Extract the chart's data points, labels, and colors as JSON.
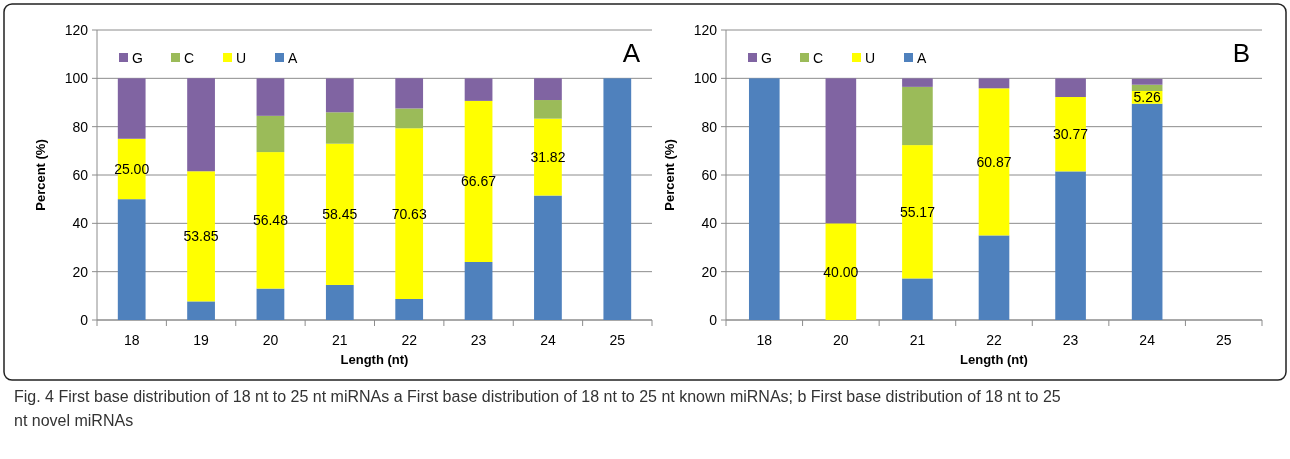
{
  "chart_data": [
    {
      "type": "bar",
      "stacked": true,
      "xlabel": "Length (nt)",
      "ylabel": "Percent (%)",
      "categories": [
        "18",
        "19",
        "20",
        "21",
        "22",
        "23",
        "24",
        "25"
      ],
      "ylim": [
        0,
        120
      ],
      "yticks": [
        0,
        20,
        40,
        60,
        80,
        100,
        120
      ],
      "grid": "y",
      "legend": "top left",
      "series": [
        {
          "name": "A",
          "color": "#4f81bd",
          "values": [
            50,
            7.7,
            13,
            14.5,
            8.7,
            24,
            51.5,
            100
          ]
        },
        {
          "name": "U",
          "color": "#ffff00",
          "values": [
            25,
            53.85,
            56.48,
            58.45,
            70.63,
            66.67,
            31.82,
            null
          ],
          "value_labels": [
            "25.00",
            "53.85",
            "56.48",
            "58.45",
            "70.63",
            "66.67",
            "31.82",
            null
          ]
        },
        {
          "name": "C",
          "color": "#9bbb59",
          "values": [
            null,
            null,
            15,
            13,
            8.2,
            null,
            7.7,
            null
          ]
        },
        {
          "name": "G",
          "color": "#8064a2",
          "values": [
            25,
            38.5,
            15.5,
            14,
            12.5,
            9.3,
            9,
            null
          ]
        }
      ],
      "annotations": [
        "A",
        "Fig. 4 First base distribution of 18 nt to 25 nt miRNAs a First base distribution of 18 nt to 25 nt known miRNAs; b First base distribution of 18 nt to 25 nt novel miRNAs"
      ]
    },
    {
      "type": "bar",
      "stacked": true,
      "xlabel": "Length (nt)",
      "ylabel": "Percent (%)",
      "categories": [
        "18",
        "20",
        "21",
        "22",
        "23",
        "24",
        "25"
      ],
      "ylim": [
        0,
        120
      ],
      "yticks": [
        0,
        20,
        40,
        60,
        80,
        100,
        120
      ],
      "grid": "y",
      "legend": "top left",
      "series": [
        {
          "name": "A",
          "color": "#4f81bd",
          "values": [
            100,
            null,
            17.2,
            35,
            61.5,
            89.5,
            null
          ]
        },
        {
          "name": "U",
          "color": "#ffff00",
          "values": [
            null,
            40,
            55.17,
            60.87,
            30.77,
            5.26,
            null
          ],
          "value_labels": [
            null,
            "40.00",
            "55.17",
            "60.87",
            "30.77",
            "5.26",
            null
          ]
        },
        {
          "name": "C",
          "color": "#9bbb59",
          "values": [
            null,
            null,
            24.1,
            null,
            null,
            2.6,
            null
          ]
        },
        {
          "name": "G",
          "color": "#8064a2",
          "values": [
            null,
            60,
            3.5,
            4.1,
            7.7,
            2.4,
            null
          ]
        }
      ],
      "annotations": [
        "B"
      ]
    }
  ]
}
